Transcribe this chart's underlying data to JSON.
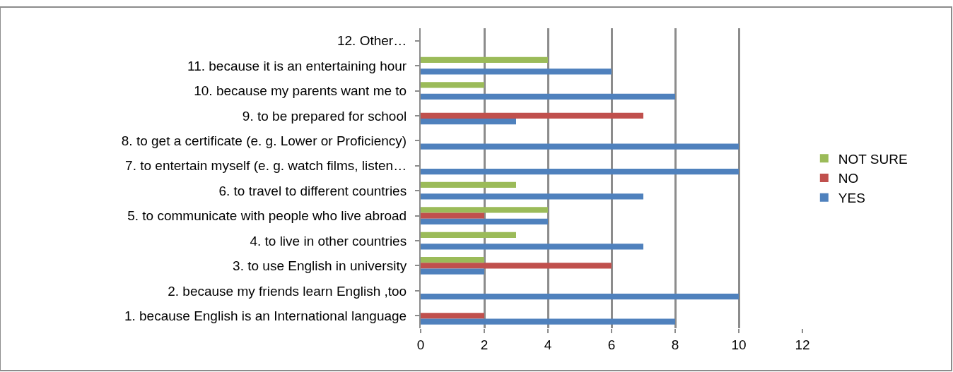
{
  "chart_data": {
    "type": "bar",
    "orientation": "horizontal",
    "categories": [
      "12. Other…",
      "11. because it is an entertaining hour",
      "10. because my parents want me to",
      "9. to be prepared for school",
      "8. to get a certificate (e. g. Lower or Proficiency)",
      "7. to entertain myself (e. g. watch films, listen…",
      "6. to travel to different countries",
      "5. to communicate with people who live abroad",
      "4. to live in other countries",
      "3. to use English in university",
      "2. because my friends learn English ,too",
      "1. because English is an International language"
    ],
    "series": [
      {
        "name": "NOT SURE",
        "color": "#9bbb59",
        "values": [
          null,
          4,
          2,
          null,
          null,
          null,
          3,
          4,
          3,
          2,
          null,
          null
        ]
      },
      {
        "name": "NO",
        "color": "#c0504d",
        "values": [
          null,
          null,
          null,
          7,
          null,
          null,
          null,
          2,
          null,
          6,
          null,
          2
        ]
      },
      {
        "name": "YES",
        "color": "#4f81bd",
        "values": [
          null,
          6,
          8,
          3,
          10,
          10,
          7,
          4,
          7,
          2,
          10,
          8
        ]
      }
    ],
    "xlim": [
      0,
      12
    ],
    "xticks": [
      0,
      2,
      4,
      6,
      8,
      10,
      12
    ],
    "grid": "x",
    "legend": "right"
  }
}
